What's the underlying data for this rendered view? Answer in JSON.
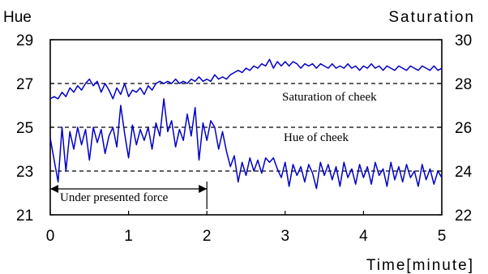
{
  "chart_data": {
    "type": "line",
    "y_left_label": "Hue",
    "y_right_label": "Saturation",
    "xlabel": "Time[minute]",
    "xlim": [
      0,
      5
    ],
    "ylim_left": [
      21,
      29
    ],
    "ylim_right": [
      22,
      30
    ],
    "x_ticks": [
      "0",
      "1",
      "2",
      "3",
      "4",
      "5"
    ],
    "y_left_ticks": [
      "21",
      "23",
      "25",
      "27",
      "29"
    ],
    "y_right_ticks": [
      "22",
      "24",
      "26",
      "28",
      "30"
    ],
    "grid": false,
    "reference_lines_left": [
      23,
      25,
      27
    ],
    "annotations": {
      "saturation": "Saturation of cheek",
      "hue": "Hue of cheek",
      "force": "Under presented force"
    },
    "force_interval": [
      0,
      2
    ],
    "line_color": "#0000c8",
    "series": [
      {
        "key": "saturation",
        "axis": "right",
        "points": [
          [
            0.0,
            27.3
          ],
          [
            0.05,
            27.4
          ],
          [
            0.1,
            27.3
          ],
          [
            0.15,
            27.6
          ],
          [
            0.2,
            27.4
          ],
          [
            0.25,
            27.8
          ],
          [
            0.3,
            27.6
          ],
          [
            0.35,
            27.9
          ],
          [
            0.4,
            27.7
          ],
          [
            0.45,
            28.0
          ],
          [
            0.5,
            28.2
          ],
          [
            0.55,
            27.9
          ],
          [
            0.6,
            28.1
          ],
          [
            0.65,
            27.6
          ],
          [
            0.7,
            28.0
          ],
          [
            0.75,
            27.7
          ],
          [
            0.8,
            27.3
          ],
          [
            0.85,
            27.8
          ],
          [
            0.9,
            27.5
          ],
          [
            0.95,
            28.0
          ],
          [
            1.0,
            27.4
          ],
          [
            1.05,
            27.7
          ],
          [
            1.1,
            27.6
          ],
          [
            1.15,
            27.8
          ],
          [
            1.2,
            27.5
          ],
          [
            1.25,
            27.9
          ],
          [
            1.3,
            27.7
          ],
          [
            1.35,
            28.0
          ],
          [
            1.4,
            28.1
          ],
          [
            1.45,
            28.0
          ],
          [
            1.5,
            28.1
          ],
          [
            1.55,
            28.0
          ],
          [
            1.6,
            28.2
          ],
          [
            1.65,
            28.0
          ],
          [
            1.7,
            28.1
          ],
          [
            1.75,
            28.0
          ],
          [
            1.8,
            28.2
          ],
          [
            1.85,
            28.1
          ],
          [
            1.9,
            28.3
          ],
          [
            1.95,
            28.1
          ],
          [
            2.0,
            28.2
          ],
          [
            2.05,
            28.1
          ],
          [
            2.1,
            28.4
          ],
          [
            2.15,
            28.2
          ],
          [
            2.2,
            28.3
          ],
          [
            2.25,
            28.2
          ],
          [
            2.3,
            28.4
          ],
          [
            2.35,
            28.5
          ],
          [
            2.4,
            28.6
          ],
          [
            2.45,
            28.5
          ],
          [
            2.5,
            28.7
          ],
          [
            2.55,
            28.6
          ],
          [
            2.6,
            28.8
          ],
          [
            2.65,
            28.7
          ],
          [
            2.7,
            28.9
          ],
          [
            2.75,
            28.8
          ],
          [
            2.8,
            29.1
          ],
          [
            2.85,
            28.7
          ],
          [
            2.9,
            29.0
          ],
          [
            2.95,
            28.8
          ],
          [
            3.0,
            29.0
          ],
          [
            3.05,
            28.8
          ],
          [
            3.1,
            29.0
          ],
          [
            3.15,
            28.9
          ],
          [
            3.2,
            28.7
          ],
          [
            3.25,
            28.9
          ],
          [
            3.3,
            28.8
          ],
          [
            3.35,
            28.9
          ],
          [
            3.4,
            28.7
          ],
          [
            3.45,
            28.9
          ],
          [
            3.5,
            28.8
          ],
          [
            3.55,
            28.7
          ],
          [
            3.6,
            28.9
          ],
          [
            3.65,
            28.7
          ],
          [
            3.7,
            28.8
          ],
          [
            3.75,
            28.7
          ],
          [
            3.8,
            28.9
          ],
          [
            3.85,
            28.7
          ],
          [
            3.9,
            28.8
          ],
          [
            3.95,
            28.6
          ],
          [
            4.0,
            28.8
          ],
          [
            4.05,
            28.7
          ],
          [
            4.1,
            28.9
          ],
          [
            4.15,
            28.7
          ],
          [
            4.2,
            28.8
          ],
          [
            4.25,
            28.6
          ],
          [
            4.3,
            28.8
          ],
          [
            4.35,
            28.7
          ],
          [
            4.4,
            28.6
          ],
          [
            4.45,
            28.8
          ],
          [
            4.5,
            28.7
          ],
          [
            4.55,
            28.6
          ],
          [
            4.6,
            28.8
          ],
          [
            4.65,
            28.7
          ],
          [
            4.7,
            28.6
          ],
          [
            4.75,
            28.8
          ],
          [
            4.8,
            28.7
          ],
          [
            4.85,
            28.6
          ],
          [
            4.9,
            28.8
          ],
          [
            4.95,
            28.6
          ],
          [
            5.0,
            28.7
          ]
        ]
      },
      {
        "key": "hue",
        "axis": "left",
        "points": [
          [
            0.0,
            24.5
          ],
          [
            0.05,
            23.5
          ],
          [
            0.1,
            22.5
          ],
          [
            0.15,
            25.0
          ],
          [
            0.2,
            23.0
          ],
          [
            0.25,
            24.8
          ],
          [
            0.3,
            24.0
          ],
          [
            0.35,
            25.0
          ],
          [
            0.4,
            24.2
          ],
          [
            0.45,
            24.9
          ],
          [
            0.5,
            23.5
          ],
          [
            0.55,
            25.0
          ],
          [
            0.6,
            24.3
          ],
          [
            0.65,
            24.9
          ],
          [
            0.7,
            23.8
          ],
          [
            0.75,
            24.6
          ],
          [
            0.8,
            25.0
          ],
          [
            0.85,
            24.1
          ],
          [
            0.9,
            26.0
          ],
          [
            0.95,
            24.7
          ],
          [
            1.0,
            23.6
          ],
          [
            1.05,
            25.1
          ],
          [
            1.1,
            24.2
          ],
          [
            1.15,
            24.9
          ],
          [
            1.2,
            24.4
          ],
          [
            1.25,
            25.0
          ],
          [
            1.3,
            24.0
          ],
          [
            1.35,
            25.2
          ],
          [
            1.4,
            24.6
          ],
          [
            1.45,
            26.3
          ],
          [
            1.5,
            24.8
          ],
          [
            1.55,
            25.3
          ],
          [
            1.6,
            24.1
          ],
          [
            1.65,
            24.9
          ],
          [
            1.7,
            24.4
          ],
          [
            1.75,
            25.6
          ],
          [
            1.8,
            24.6
          ],
          [
            1.85,
            25.9
          ],
          [
            1.9,
            23.5
          ],
          [
            1.95,
            25.2
          ],
          [
            2.0,
            24.4
          ],
          [
            2.05,
            25.3
          ],
          [
            2.1,
            25.0
          ],
          [
            2.15,
            24.0
          ],
          [
            2.2,
            24.8
          ],
          [
            2.25,
            23.9
          ],
          [
            2.3,
            23.2
          ],
          [
            2.35,
            23.7
          ],
          [
            2.4,
            22.5
          ],
          [
            2.45,
            23.4
          ],
          [
            2.5,
            22.8
          ],
          [
            2.55,
            23.6
          ],
          [
            2.6,
            23.0
          ],
          [
            2.65,
            23.5
          ],
          [
            2.7,
            22.9
          ],
          [
            2.75,
            23.6
          ],
          [
            2.8,
            23.4
          ],
          [
            2.85,
            23.6
          ],
          [
            2.9,
            23.1
          ],
          [
            2.95,
            22.7
          ],
          [
            3.0,
            23.4
          ],
          [
            3.05,
            22.3
          ],
          [
            3.1,
            23.3
          ],
          [
            3.15,
            22.8
          ],
          [
            3.2,
            23.2
          ],
          [
            3.25,
            22.5
          ],
          [
            3.3,
            23.3
          ],
          [
            3.35,
            22.9
          ],
          [
            3.4,
            22.2
          ],
          [
            3.45,
            23.4
          ],
          [
            3.5,
            22.8
          ],
          [
            3.55,
            23.3
          ],
          [
            3.6,
            22.6
          ],
          [
            3.65,
            23.2
          ],
          [
            3.7,
            22.3
          ],
          [
            3.75,
            23.4
          ],
          [
            3.8,
            22.7
          ],
          [
            3.85,
            23.1
          ],
          [
            3.9,
            22.4
          ],
          [
            3.95,
            23.3
          ],
          [
            4.0,
            22.7
          ],
          [
            4.05,
            23.2
          ],
          [
            4.1,
            22.4
          ],
          [
            4.15,
            23.4
          ],
          [
            4.2,
            22.8
          ],
          [
            4.25,
            23.1
          ],
          [
            4.3,
            22.3
          ],
          [
            4.35,
            23.4
          ],
          [
            4.4,
            22.6
          ],
          [
            4.45,
            23.2
          ],
          [
            4.5,
            22.5
          ],
          [
            4.55,
            23.3
          ],
          [
            4.6,
            22.7
          ],
          [
            4.65,
            23.0
          ],
          [
            4.7,
            22.3
          ],
          [
            4.75,
            23.3
          ],
          [
            4.8,
            22.6
          ],
          [
            4.85,
            23.1
          ],
          [
            4.9,
            22.4
          ],
          [
            4.95,
            23.0
          ],
          [
            5.0,
            22.7
          ]
        ]
      }
    ]
  }
}
